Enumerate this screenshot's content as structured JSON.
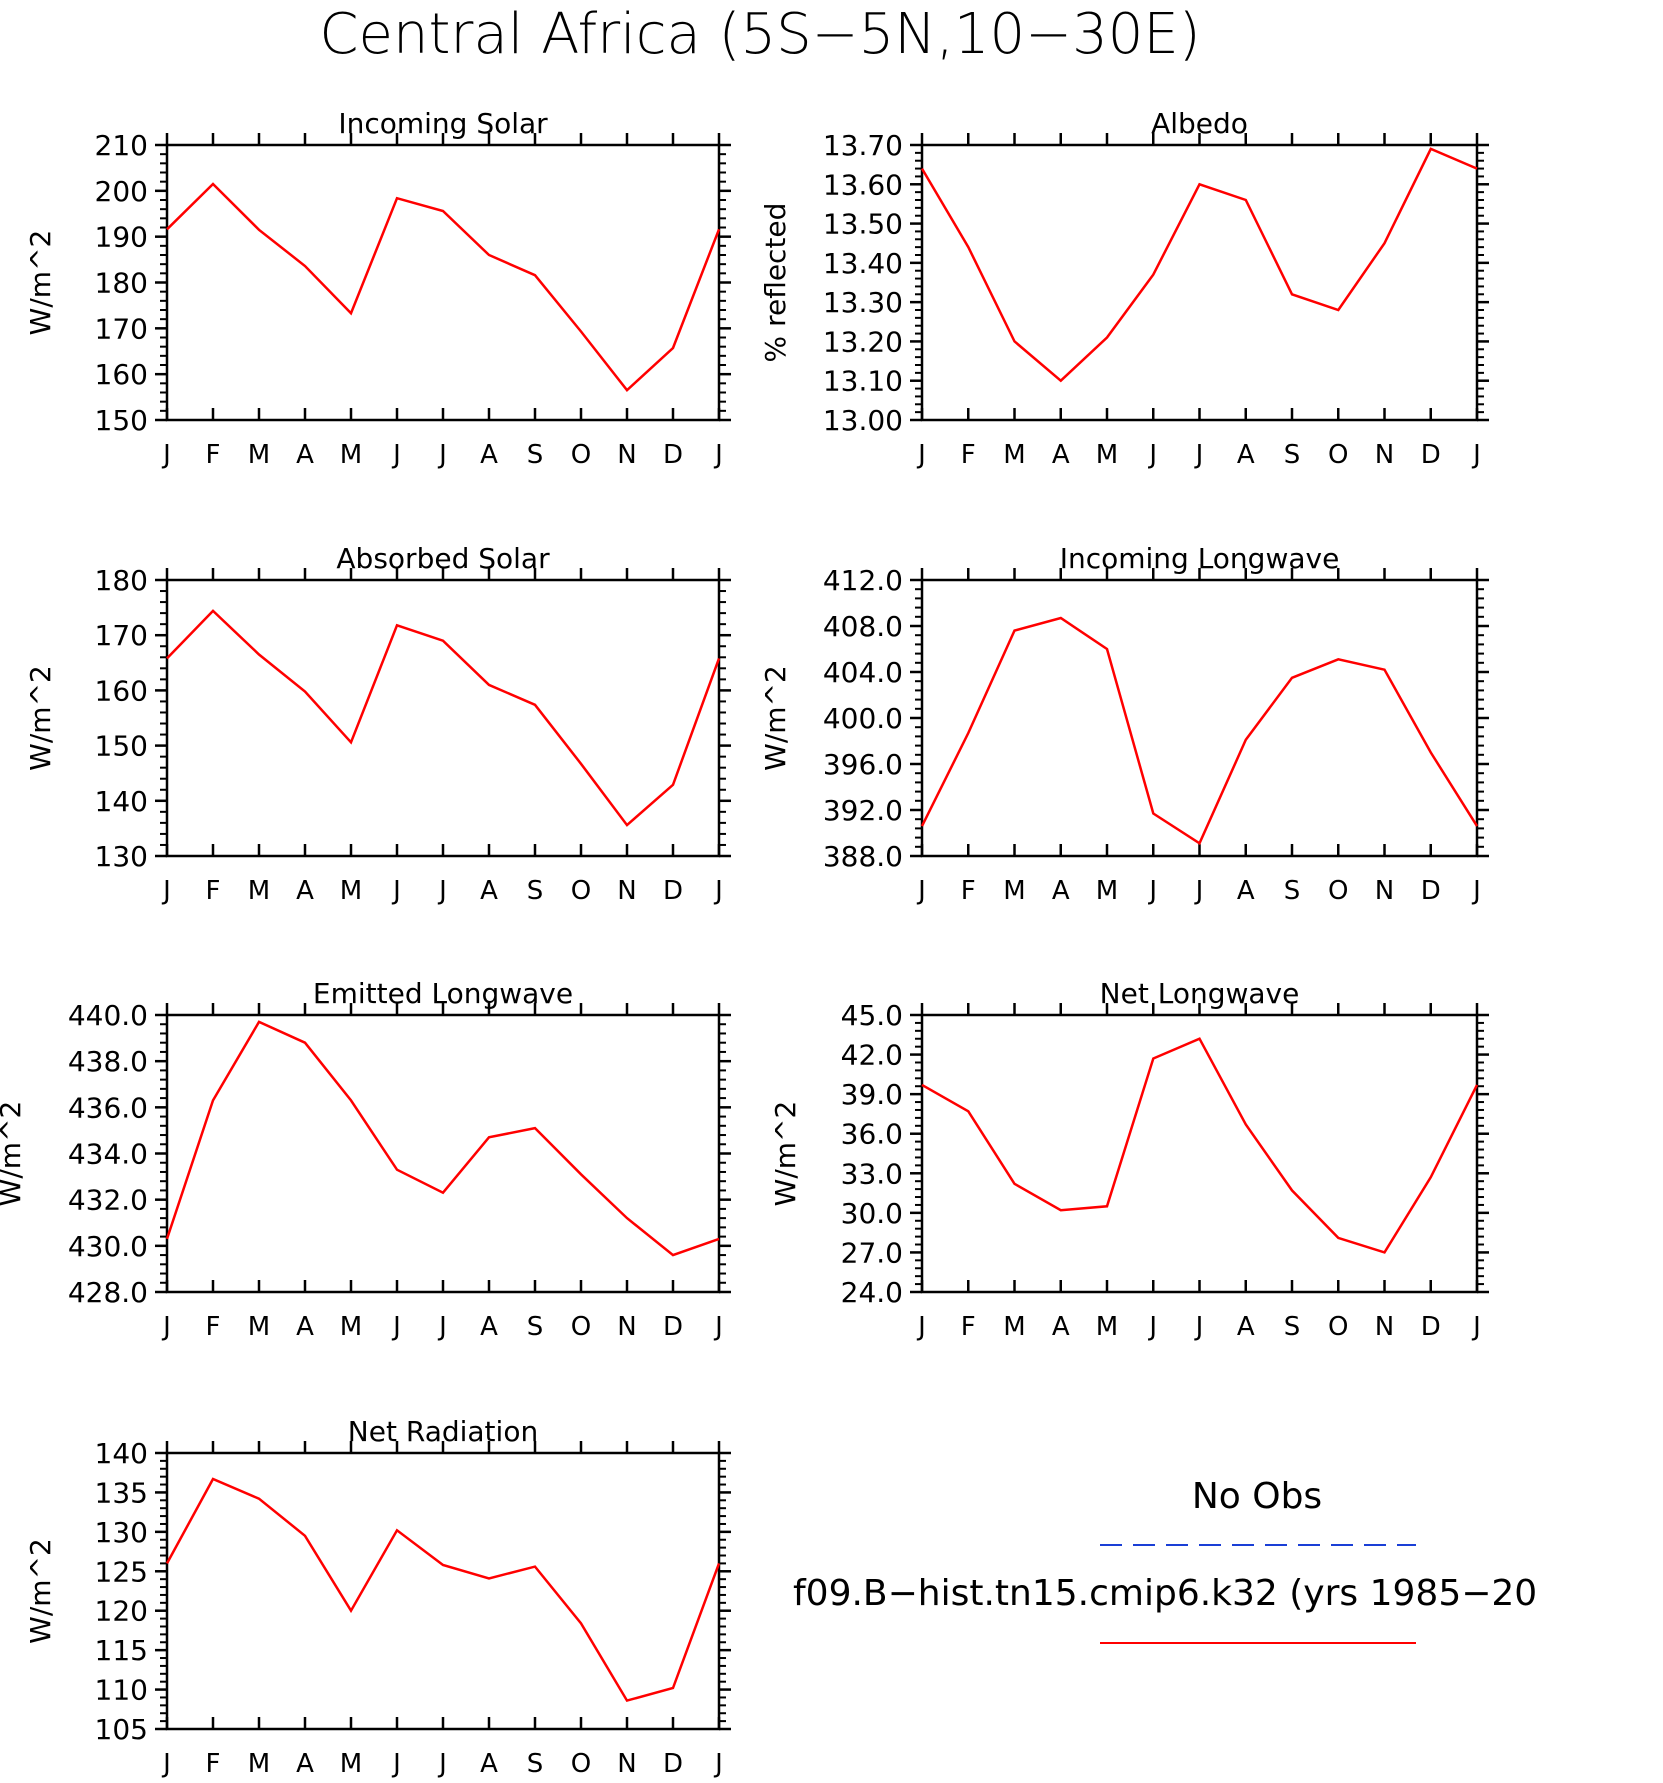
{
  "figure": {
    "title": "Central Africa (5S−5N,10−30E)",
    "legend": {
      "obs_label": "No Obs",
      "obs_color": "#1a3fd6",
      "model_label": "f09.B−hist.tn15.cmip6.k32 (yrs 1985−20",
      "model_color": "#ff0000"
    }
  },
  "chart_data": [
    {
      "type": "line",
      "title": "Incoming Solar",
      "ylabel": "W/m^2",
      "categories": [
        "J",
        "F",
        "M",
        "A",
        "M",
        "J",
        "J",
        "A",
        "S",
        "O",
        "N",
        "D",
        "J"
      ],
      "ylim": [
        150,
        210
      ],
      "yticks": [
        "150",
        "160",
        "170",
        "180",
        "190",
        "200",
        "210"
      ],
      "ytick_values": [
        150,
        160,
        170,
        180,
        190,
        200,
        210
      ],
      "series": [
        {
          "color": "#ff0000",
          "values": [
            191.6,
            201.5,
            191.5,
            183.6,
            173.3,
            198.4,
            195.6,
            186.0,
            181.6,
            169.3,
            156.5,
            165.7,
            191.6
          ]
        }
      ]
    },
    {
      "type": "line",
      "title": "Albedo",
      "ylabel": "% reflected",
      "categories": [
        "J",
        "F",
        "M",
        "A",
        "M",
        "J",
        "J",
        "A",
        "S",
        "O",
        "N",
        "D",
        "J"
      ],
      "ylim": [
        13.0,
        13.7
      ],
      "yticks": [
        "13.00",
        "13.10",
        "13.20",
        "13.30",
        "13.40",
        "13.50",
        "13.60",
        "13.70"
      ],
      "ytick_values": [
        13.0,
        13.1,
        13.2,
        13.3,
        13.4,
        13.5,
        13.6,
        13.7
      ],
      "series": [
        {
          "color": "#ff0000",
          "values": [
            13.64,
            13.44,
            13.2,
            13.1,
            13.21,
            13.37,
            13.6,
            13.56,
            13.32,
            13.28,
            13.45,
            13.69,
            13.64
          ]
        }
      ]
    },
    {
      "type": "line",
      "title": "Absorbed Solar",
      "ylabel": "W/m^2",
      "categories": [
        "J",
        "F",
        "M",
        "A",
        "M",
        "J",
        "J",
        "A",
        "S",
        "O",
        "N",
        "D",
        "J"
      ],
      "ylim": [
        130,
        180
      ],
      "yticks": [
        "130",
        "140",
        "150",
        "160",
        "170",
        "180"
      ],
      "ytick_values": [
        130,
        140,
        150,
        160,
        170,
        180
      ],
      "series": [
        {
          "color": "#ff0000",
          "values": [
            165.8,
            174.4,
            166.5,
            159.8,
            150.6,
            171.8,
            169.0,
            161.0,
            157.4,
            146.7,
            135.6,
            142.9,
            165.8
          ]
        }
      ]
    },
    {
      "type": "line",
      "title": "Incoming Longwave",
      "ylabel": "W/m^2",
      "categories": [
        "J",
        "F",
        "M",
        "A",
        "M",
        "J",
        "J",
        "A",
        "S",
        "O",
        "N",
        "D",
        "J"
      ],
      "ylim": [
        388,
        412
      ],
      "yticks": [
        "388.0",
        "392.0",
        "396.0",
        "400.0",
        "404.0",
        "408.0",
        "412.0"
      ],
      "ytick_values": [
        388,
        392,
        396,
        400,
        404,
        408,
        412
      ],
      "series": [
        {
          "color": "#ff0000",
          "values": [
            390.6,
            398.7,
            407.6,
            408.7,
            406.0,
            391.7,
            389.1,
            398.1,
            403.5,
            405.1,
            404.2,
            397.0,
            390.6
          ]
        }
      ]
    },
    {
      "type": "line",
      "title": "Emitted Longwave",
      "ylabel": "W/m^2",
      "categories": [
        "J",
        "F",
        "M",
        "A",
        "M",
        "J",
        "J",
        "A",
        "S",
        "O",
        "N",
        "D",
        "J"
      ],
      "ylim": [
        428,
        440
      ],
      "yticks": [
        "428.0",
        "430.0",
        "432.0",
        "434.0",
        "436.0",
        "438.0",
        "440.0"
      ],
      "ytick_values": [
        428,
        430,
        432,
        434,
        436,
        438,
        440
      ],
      "series": [
        {
          "color": "#ff0000",
          "values": [
            430.3,
            436.3,
            439.7,
            438.8,
            436.3,
            433.3,
            432.3,
            434.7,
            435.1,
            433.1,
            431.2,
            429.6,
            430.3
          ]
        }
      ]
    },
    {
      "type": "line",
      "title": "Net Longwave",
      "ylabel": "W/m^2",
      "categories": [
        "J",
        "F",
        "M",
        "A",
        "M",
        "J",
        "J",
        "A",
        "S",
        "O",
        "N",
        "D",
        "J"
      ],
      "ylim": [
        24,
        45
      ],
      "yticks": [
        "24.0",
        "27.0",
        "30.0",
        "33.0",
        "36.0",
        "39.0",
        "42.0",
        "45.0"
      ],
      "ytick_values": [
        24,
        27,
        30,
        33,
        36,
        39,
        42,
        45
      ],
      "series": [
        {
          "color": "#ff0000",
          "values": [
            39.7,
            37.7,
            32.2,
            30.2,
            30.5,
            41.7,
            43.2,
            36.7,
            31.7,
            28.1,
            27.0,
            32.7,
            39.7
          ]
        }
      ]
    },
    {
      "type": "line",
      "title": "Net Radiation",
      "ylabel": "W/m^2",
      "categories": [
        "J",
        "F",
        "M",
        "A",
        "M",
        "J",
        "J",
        "A",
        "S",
        "O",
        "N",
        "D",
        "J"
      ],
      "ylim": [
        105,
        140
      ],
      "yticks": [
        "105",
        "110",
        "115",
        "120",
        "125",
        "130",
        "135",
        "140"
      ],
      "ytick_values": [
        105,
        110,
        115,
        120,
        125,
        130,
        135,
        140
      ],
      "series": [
        {
          "color": "#ff0000",
          "values": [
            126.0,
            136.7,
            134.2,
            129.5,
            120.0,
            130.2,
            125.8,
            124.1,
            125.6,
            118.4,
            108.6,
            110.2,
            126.0
          ]
        }
      ]
    }
  ]
}
